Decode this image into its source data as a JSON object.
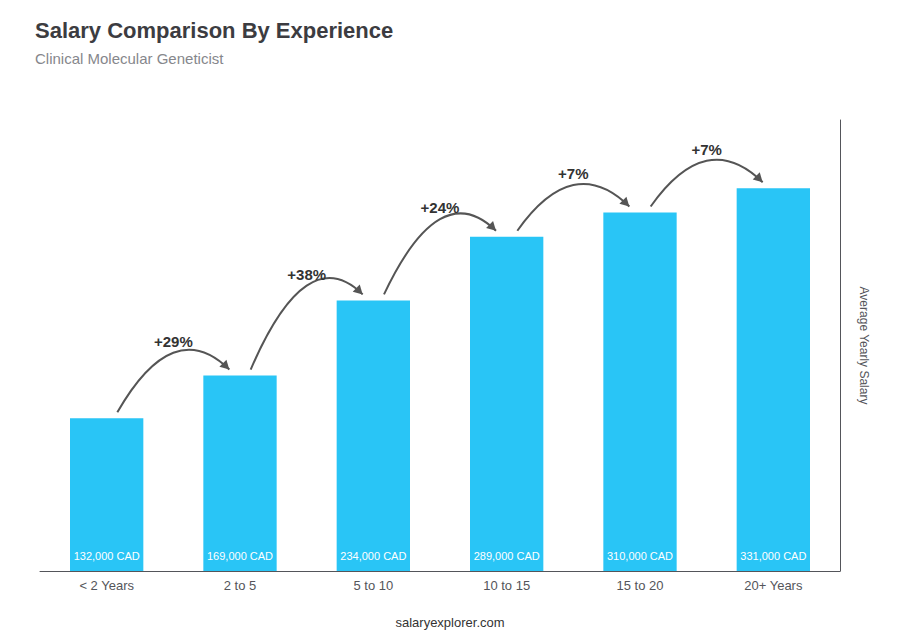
{
  "chart_data": {
    "type": "bar",
    "title": "Salary Comparison By Experience",
    "subtitle": "Clinical Molecular Geneticist",
    "caption": "salaryexplorer.com",
    "ylabel": "Average Yearly Salary",
    "categories": [
      "< 2 Years",
      "2 to 5",
      "5 to 10",
      "10 to 15",
      "15 to 20",
      "20+ Years"
    ],
    "values": [
      132000,
      169000,
      234000,
      289000,
      310000,
      331000
    ],
    "value_labels": [
      "132,000 CAD",
      "169,000 CAD",
      "234,000 CAD",
      "289,000 CAD",
      "310,000 CAD",
      "331,000 CAD"
    ],
    "pct_changes": [
      null,
      "+29%",
      "+38%",
      "+24%",
      "+7%",
      "+7%"
    ],
    "color": "#29c5f6",
    "ylim": [
      0,
      390000
    ],
    "grid": false,
    "data_labels": true,
    "tick_labels": "x"
  }
}
